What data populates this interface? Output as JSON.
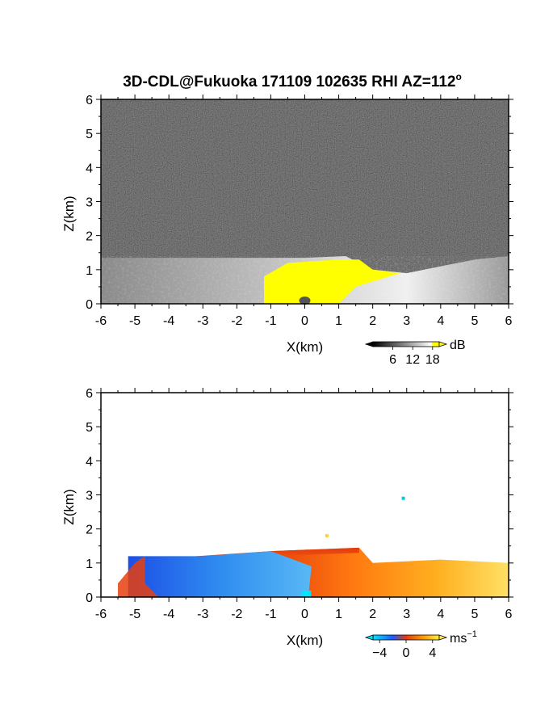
{
  "title": "3D-CDL@Fukuoka 171109 102635 RHI AZ=112",
  "title_degree": "o",
  "chart_data": [
    {
      "type": "heatmap",
      "quantity": "backscatter",
      "xlabel": "X(km)",
      "ylabel": "Z(km)",
      "xlim": [
        -6,
        6
      ],
      "ylim": [
        0,
        6
      ],
      "xticks": [
        "-6",
        "-5",
        "-4",
        "-3",
        "-2",
        "-1",
        "0",
        "1",
        "2",
        "3",
        "4",
        "5",
        "6"
      ],
      "yticks": [
        "0",
        "1",
        "2",
        "3",
        "4",
        "5",
        "6"
      ],
      "colorbar": {
        "unit": "dB",
        "ticks": [
          "6",
          "12",
          "18"
        ],
        "range": [
          0,
          20
        ],
        "colors": [
          "#000000",
          "#ffffff",
          "#ffff00"
        ]
      },
      "features": {
        "boundary_layer_top_km": [
          [
            -6,
            1.35
          ],
          [
            -3,
            1.35
          ],
          [
            0,
            1.35
          ],
          [
            1.2,
            1.4
          ],
          [
            2,
            1.0
          ],
          [
            3,
            0.9
          ],
          [
            4,
            1.1
          ],
          [
            5,
            1.3
          ],
          [
            6,
            1.4
          ]
        ],
        "saturated_region_km": [
          [
            -1.2,
            0
          ],
          [
            -1.2,
            0.8
          ],
          [
            -0.5,
            1.2
          ],
          [
            1.0,
            1.3
          ],
          [
            1.6,
            1.3
          ],
          [
            2.0,
            1.0
          ],
          [
            2.8,
            0.9
          ],
          [
            1.5,
            0.5
          ],
          [
            1.0,
            0.0
          ]
        ]
      }
    },
    {
      "type": "heatmap",
      "quantity": "radial_velocity",
      "xlabel": "X(km)",
      "ylabel": "Z(km)",
      "xlim": [
        -6,
        6
      ],
      "ylim": [
        0,
        6
      ],
      "xticks": [
        "-6",
        "-5",
        "-4",
        "-3",
        "-2",
        "-1",
        "0",
        "1",
        "2",
        "3",
        "4",
        "5",
        "6"
      ],
      "yticks": [
        "0",
        "1",
        "2",
        "3",
        "4",
        "5",
        "6"
      ],
      "colorbar": {
        "unit": "ms",
        "unit_sup": "−1",
        "ticks": [
          "−4",
          "0",
          "4"
        ],
        "range": [
          -5,
          5
        ],
        "colors": [
          "#00e5ff",
          "#1a5cff",
          "#e53a0f",
          "#ff9900",
          "#ffee44"
        ]
      },
      "features": {
        "negative_region_km": [
          [
            -5.2,
            0
          ],
          [
            -5.2,
            1.2
          ],
          [
            -3,
            1.2
          ],
          [
            -1,
            1.35
          ],
          [
            0.2,
            0.9
          ],
          [
            0.1,
            0
          ]
        ],
        "positive_region_km": [
          [
            -1,
            1.35
          ],
          [
            1.6,
            1.45
          ],
          [
            2,
            1.0
          ],
          [
            4,
            1.1
          ],
          [
            6,
            1.0
          ],
          [
            6,
            0
          ],
          [
            0.1,
            0
          ]
        ],
        "isolated_points_km": [
          [
            2.9,
            2.9
          ],
          [
            0.65,
            1.8
          ]
        ]
      }
    }
  ]
}
